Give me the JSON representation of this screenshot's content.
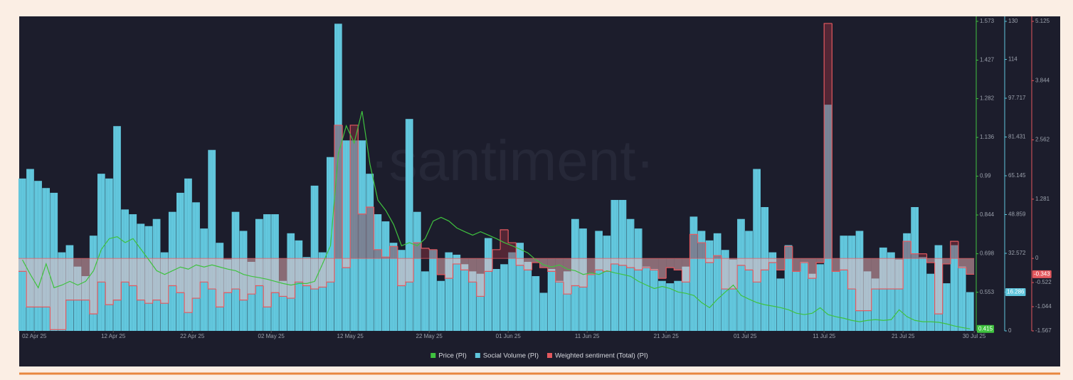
{
  "chart_data": {
    "type": "combo",
    "watermark": "·santiment·",
    "x": [
      "2025-03-31",
      "2025-04-01",
      "2025-04-02",
      "2025-04-03",
      "2025-04-04",
      "2025-04-05",
      "2025-04-06",
      "2025-04-07",
      "2025-04-08",
      "2025-04-09",
      "2025-04-10",
      "2025-04-11",
      "2025-04-12",
      "2025-04-13",
      "2025-04-14",
      "2025-04-15",
      "2025-04-16",
      "2025-04-17",
      "2025-04-18",
      "2025-04-19",
      "2025-04-20",
      "2025-04-21",
      "2025-04-22",
      "2025-04-23",
      "2025-04-24",
      "2025-04-25",
      "2025-04-26",
      "2025-04-27",
      "2025-04-28",
      "2025-04-29",
      "2025-04-30",
      "2025-05-01",
      "2025-05-02",
      "2025-05-03",
      "2025-05-04",
      "2025-05-05",
      "2025-05-06",
      "2025-05-07",
      "2025-05-08",
      "2025-05-09",
      "2025-05-10",
      "2025-05-11",
      "2025-05-12",
      "2025-05-13",
      "2025-05-14",
      "2025-05-15",
      "2025-05-16",
      "2025-05-17",
      "2025-05-18",
      "2025-05-19",
      "2025-05-20",
      "2025-05-21",
      "2025-05-22",
      "2025-05-23",
      "2025-05-24",
      "2025-05-25",
      "2025-05-26",
      "2025-05-27",
      "2025-05-28",
      "2025-05-29",
      "2025-05-30",
      "2025-05-31",
      "2025-06-01",
      "2025-06-02",
      "2025-06-03",
      "2025-06-04",
      "2025-06-05",
      "2025-06-06",
      "2025-06-07",
      "2025-06-08",
      "2025-06-09",
      "2025-06-10",
      "2025-06-11",
      "2025-06-12",
      "2025-06-13",
      "2025-06-14",
      "2025-06-15",
      "2025-06-16",
      "2025-06-17",
      "2025-06-18",
      "2025-06-19",
      "2025-06-20",
      "2025-06-21",
      "2025-06-22",
      "2025-06-23",
      "2025-06-24",
      "2025-06-25",
      "2025-06-26",
      "2025-06-27",
      "2025-06-28",
      "2025-06-29",
      "2025-06-30",
      "2025-07-01",
      "2025-07-02",
      "2025-07-03",
      "2025-07-04",
      "2025-07-05",
      "2025-07-06",
      "2025-07-07",
      "2025-07-08",
      "2025-07-09",
      "2025-07-10",
      "2025-07-11",
      "2025-07-12",
      "2025-07-13",
      "2025-07-14",
      "2025-07-15",
      "2025-07-16",
      "2025-07-17",
      "2025-07-18",
      "2025-07-19",
      "2025-07-20",
      "2025-07-21",
      "2025-07-22",
      "2025-07-23",
      "2025-07-24",
      "2025-07-25",
      "2025-07-26",
      "2025-07-27",
      "2025-07-28",
      "2025-07-29"
    ],
    "xticks": [
      {
        "value": "2025-04-02",
        "label": "02 Apr 25"
      },
      {
        "value": "2025-04-12",
        "label": "12 Apr 25"
      },
      {
        "value": "2025-04-22",
        "label": "22 Apr 25"
      },
      {
        "value": "2025-05-02",
        "label": "02 May 25"
      },
      {
        "value": "2025-05-12",
        "label": "12 May 25"
      },
      {
        "value": "2025-05-22",
        "label": "22 May 25"
      },
      {
        "value": "2025-06-01",
        "label": "01 Jun 25"
      },
      {
        "value": "2025-06-11",
        "label": "11 Jun 25"
      },
      {
        "value": "2025-06-21",
        "label": "21 Jun 25"
      },
      {
        "value": "2025-07-01",
        "label": "01 Jul 25"
      },
      {
        "value": "2025-07-11",
        "label": "11 Jul 25"
      },
      {
        "value": "2025-07-21",
        "label": "21 Jul 25"
      },
      {
        "value": "2025-07-30",
        "label": "30 Jul 25"
      }
    ],
    "ylim": [
      0.4075,
      1.573
    ],
    "yticks": [
      0.553,
      0.698,
      0.844,
      0.99,
      1.136,
      1.282,
      1.427,
      1.573
    ],
    "y2lim": [
      0,
      130
    ],
    "y2ticks": [
      0,
      16.286,
      32.572,
      48.859,
      65.145,
      81.431,
      97.717,
      114,
      130
    ],
    "y3lim": [
      -1.567,
      5.125
    ],
    "y3ticks": [
      -1.567,
      -1.044,
      -0.522,
      0,
      1.281,
      2.562,
      3.844,
      5.125
    ],
    "series": [
      {
        "name": "Price (PI)",
        "type": "line",
        "axis": "y",
        "color": "#3fc23f",
        "values": [
          0.675,
          0.62,
          0.57,
          0.66,
          0.57,
          0.58,
          0.594,
          0.58,
          0.594,
          0.634,
          0.715,
          0.755,
          0.762,
          0.74,
          0.755,
          0.715,
          0.675,
          0.634,
          0.62,
          0.634,
          0.648,
          0.64,
          0.656,
          0.648,
          0.656,
          0.648,
          0.64,
          0.634,
          0.62,
          0.613,
          0.608,
          0.602,
          0.594,
          0.586,
          0.58,
          0.586,
          0.586,
          0.594,
          0.66,
          0.728,
          1.075,
          1.18,
          1.115,
          1.235,
          1.035,
          0.9,
          0.861,
          0.808,
          0.728,
          0.74,
          0.728,
          0.755,
          0.821,
          0.835,
          0.821,
          0.795,
          0.781,
          0.768,
          0.781,
          0.768,
          0.755,
          0.74,
          0.728,
          0.715,
          0.701,
          0.675,
          0.656,
          0.648,
          0.656,
          0.64,
          0.634,
          0.62,
          0.626,
          0.62,
          0.634,
          0.626,
          0.62,
          0.613,
          0.594,
          0.58,
          0.567,
          0.575,
          0.567,
          0.554,
          0.549,
          0.541,
          0.514,
          0.495,
          0.527,
          0.554,
          0.58,
          0.541,
          0.527,
          0.514,
          0.506,
          0.501,
          0.495,
          0.487,
          0.474,
          0.469,
          0.474,
          0.495,
          0.469,
          0.461,
          0.455,
          0.447,
          0.442,
          0.447,
          0.45,
          0.447,
          0.45,
          0.487,
          0.461,
          0.447,
          0.442,
          0.442,
          0.44,
          0.434,
          0.426,
          0.42,
          0.415
        ]
      },
      {
        "name": "Social Volume (PI)",
        "type": "bar",
        "axis": "y2",
        "color": "#5fc5dc",
        "values": [
          64,
          68,
          63,
          60,
          58,
          33,
          36,
          27,
          23,
          40,
          66,
          64,
          86,
          51,
          49,
          45,
          44,
          47,
          33,
          50,
          58,
          64,
          54,
          43,
          76,
          37,
          30,
          50,
          42,
          29,
          47,
          49,
          49,
          21,
          41,
          38,
          31,
          61,
          33,
          73,
          129,
          80,
          80,
          80,
          66,
          49,
          46,
          37,
          34,
          89,
          50,
          25,
          34,
          21,
          33,
          32,
          28,
          25,
          24,
          39,
          26,
          28,
          33,
          37,
          29,
          23,
          16,
          26,
          21,
          25,
          47,
          43,
          24,
          42,
          40,
          55,
          55,
          47,
          43,
          27,
          26,
          21,
          20,
          21,
          27,
          48,
          42,
          38,
          41,
          34,
          30,
          47,
          42,
          68,
          52,
          33,
          22,
          36,
          25,
          29,
          24,
          28,
          95,
          25,
          40,
          40,
          42,
          25,
          22,
          35,
          33,
          30,
          41,
          52,
          31,
          24,
          36,
          20,
          36,
          27,
          16.286
        ]
      },
      {
        "name": "Weighted sentiment (Total) (PI)",
        "type": "step-area",
        "axis": "y3",
        "color": "#e3585e",
        "values": [
          -0.28,
          -1.05,
          -1.05,
          -1.05,
          -1.54,
          -1.54,
          -0.9,
          -0.9,
          -0.9,
          -1.2,
          -0.51,
          -1.0,
          -0.9,
          -0.51,
          -0.59,
          -0.9,
          -0.97,
          -0.9,
          -0.97,
          -0.59,
          -0.74,
          -1.17,
          -0.86,
          -0.51,
          -0.66,
          -1.05,
          -0.74,
          -0.66,
          -0.9,
          -0.77,
          -0.59,
          -1.05,
          -0.74,
          -0.82,
          -0.86,
          -0.51,
          -0.59,
          -0.66,
          -0.62,
          -0.51,
          2.88,
          -0.2,
          2.88,
          0.96,
          1.11,
          0.19,
          0.03,
          0.26,
          -0.59,
          -0.51,
          0.34,
          0.22,
          0.19,
          -0.35,
          -0.43,
          -0.12,
          -0.25,
          -0.51,
          -0.82,
          -0.28,
          0.19,
          0.62,
          0.34,
          -0.15,
          -0.25,
          -0.09,
          -0.2,
          -0.28,
          -0.51,
          -0.77,
          -0.59,
          -0.62,
          -0.35,
          -0.25,
          -0.28,
          -0.12,
          -0.15,
          -0.2,
          -0.25,
          -0.2,
          -0.25,
          -0.43,
          -0.2,
          -0.25,
          -0.51,
          0.52,
          0.34,
          -0.09,
          0.06,
          -0.66,
          -0.66,
          -0.15,
          -0.25,
          -0.51,
          -0.25,
          -0.09,
          -0.25,
          0.26,
          -0.28,
          -0.09,
          -0.43,
          -0.09,
          5.08,
          -0.28,
          -0.25,
          -0.66,
          -1.13,
          -1.13,
          -0.66,
          -0.66,
          -0.66,
          -0.66,
          0.37,
          0.1,
          0.1,
          -0.09,
          -1.2,
          -0.12,
          0.37,
          -0.2,
          -0.343
        ]
      }
    ]
  }
}
